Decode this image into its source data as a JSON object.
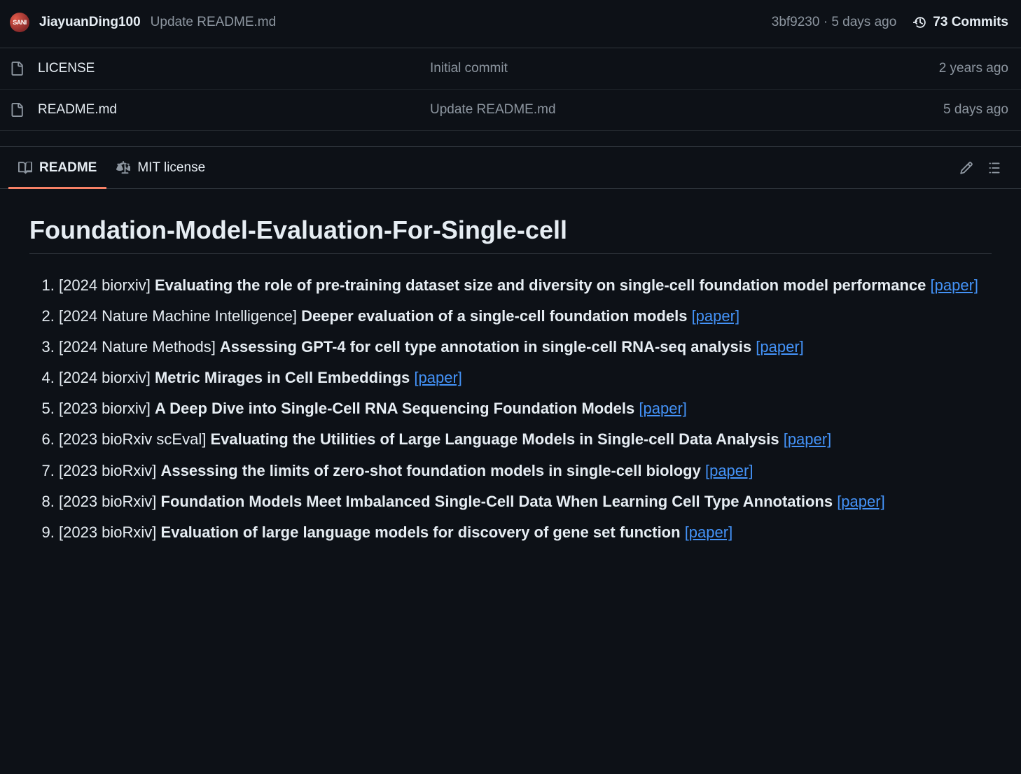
{
  "commit": {
    "author": "JiayuanDing100",
    "avatar_text": "SANI",
    "message": "Update README.md",
    "sha": "3bf9230",
    "time": "5 days ago",
    "commits_count": "73 Commits"
  },
  "files": [
    {
      "name": "LICENSE",
      "message": "Initial commit",
      "age": "2 years ago"
    },
    {
      "name": "README.md",
      "message": "Update README.md",
      "age": "5 days ago"
    }
  ],
  "tabs": {
    "readme": "README",
    "license": "MIT license"
  },
  "readme": {
    "heading": "Foundation-Model-Evaluation-For-Single-cell",
    "link_label": "[paper]",
    "papers": [
      {
        "venue": "[2024 biorxiv]",
        "title": "Evaluating the role of pre-training dataset size and diversity on single-cell foundation model performance"
      },
      {
        "venue": "[2024 Nature Machine Intelligence]",
        "title": "Deeper evaluation of a single-cell foundation models"
      },
      {
        "venue": "[2024 Nature Methods]",
        "title": "Assessing GPT-4 for cell type annotation in single-cell RNA-seq analysis"
      },
      {
        "venue": "[2024 biorxiv]",
        "title": "Metric Mirages in Cell Embeddings"
      },
      {
        "venue": "[2023 biorxiv]",
        "title": "A Deep Dive into Single-Cell RNA Sequencing Foundation Models"
      },
      {
        "venue": "[2023 bioRxiv scEval]",
        "title": "Evaluating the Utilities of Large Language Models in Single-cell Data Analysis"
      },
      {
        "venue": "[2023 bioRxiv]",
        "title": "Assessing the limits of zero-shot foundation models in single-cell biology"
      },
      {
        "venue": "[2023 bioRxiv]",
        "title": "Foundation Models Meet Imbalanced Single-Cell Data When Learning Cell Type Annotations"
      },
      {
        "venue": "[2023 bioRxiv]",
        "title": "Evaluation of large language models for discovery of gene set function"
      }
    ]
  },
  "colors": {
    "bg": "#0d1117",
    "border": "#30363d",
    "border_soft": "#21262d",
    "text": "#e6edf3",
    "muted": "#8d96a0",
    "accent_underline": "#f78166",
    "link": "#4493f8"
  }
}
